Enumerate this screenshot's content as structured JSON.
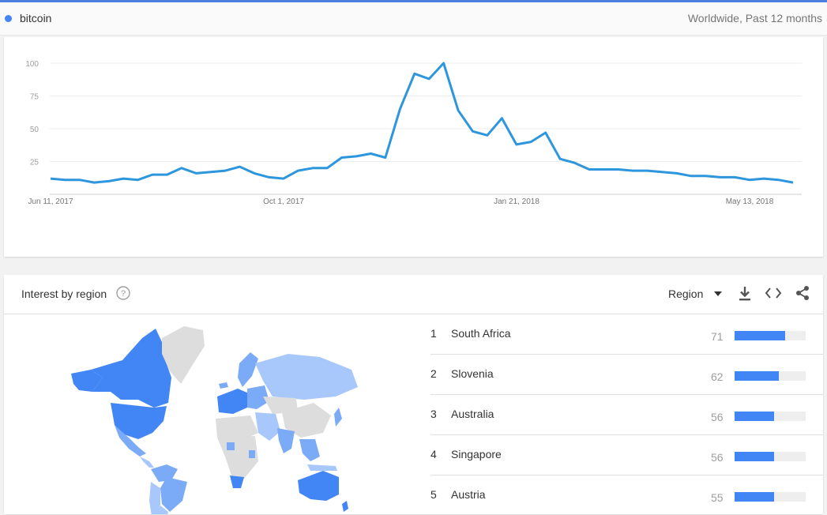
{
  "header": {
    "term": "bitcoin",
    "scope": "Worldwide, Past 12 months",
    "term_color": "#4285f4"
  },
  "chart_data": {
    "type": "line",
    "title": "",
    "xlabel": "",
    "ylabel": "",
    "ylim": [
      0,
      100
    ],
    "y_ticks": [
      25,
      50,
      75,
      100
    ],
    "x_ticks": [
      "Jun 11, 2017",
      "Oct 1, 2017",
      "Jan 21, 2018",
      "May 13, 2018"
    ],
    "grid": true,
    "series": [
      {
        "name": "bitcoin",
        "color": "#2d96dc",
        "values": [
          12,
          11,
          11,
          9,
          10,
          12,
          11,
          15,
          15,
          20,
          16,
          17,
          18,
          21,
          16,
          13,
          12,
          18,
          20,
          20,
          28,
          29,
          31,
          28,
          65,
          92,
          88,
          100,
          64,
          48,
          45,
          58,
          38,
          40,
          47,
          27,
          24,
          19,
          19,
          19,
          18,
          18,
          17,
          16,
          14,
          14,
          13,
          13,
          11,
          12,
          11,
          9
        ]
      }
    ]
  },
  "region": {
    "title": "Interest by region",
    "select_label": "Region",
    "icons": [
      "help-icon",
      "caret-down-icon",
      "download-icon",
      "embed-icon",
      "share-icon"
    ],
    "map_colors": {
      "high": "#4285f4",
      "mid": "#7baaf7",
      "low": "#a8c7fa",
      "none": "#dddddd"
    },
    "rows": [
      {
        "rank": "1",
        "name": "South Africa",
        "value": "71",
        "score": 71
      },
      {
        "rank": "2",
        "name": "Slovenia",
        "value": "62",
        "score": 62
      },
      {
        "rank": "3",
        "name": "Australia",
        "value": "56",
        "score": 56
      },
      {
        "rank": "4",
        "name": "Singapore",
        "value": "56",
        "score": 56
      },
      {
        "rank": "5",
        "name": "Austria",
        "value": "55",
        "score": 55
      }
    ]
  }
}
